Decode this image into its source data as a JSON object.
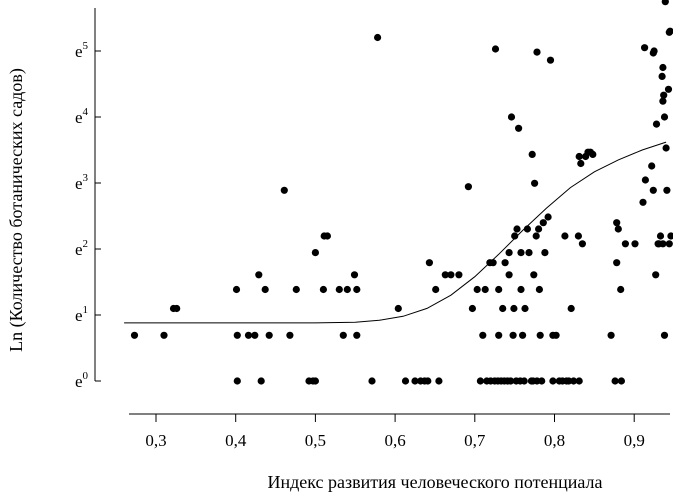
{
  "chart_data": {
    "type": "scatter",
    "xlabel": "Индекс развития человеческого потенциала",
    "ylabel": "Ln (Количество ботанических садов)",
    "xlim": [
      0.26,
      0.95
    ],
    "ylim": [
      -0.3,
      5.7
    ],
    "grid": false,
    "legend": "none",
    "x_ticks": [
      {
        "value": 0.3,
        "label": "0,3"
      },
      {
        "value": 0.4,
        "label": "0,4"
      },
      {
        "value": 0.5,
        "label": "0,5"
      },
      {
        "value": 0.6,
        "label": "0,6"
      },
      {
        "value": 0.7,
        "label": "0,7"
      },
      {
        "value": 0.8,
        "label": "0,8"
      },
      {
        "value": 0.9,
        "label": "0,9"
      }
    ],
    "y_ticks": [
      {
        "value": 0,
        "base": "e",
        "exp": "0"
      },
      {
        "value": 1,
        "base": "e",
        "exp": "1"
      },
      {
        "value": 2,
        "base": "e",
        "exp": "2"
      },
      {
        "value": 3,
        "base": "e",
        "exp": "3"
      },
      {
        "value": 4,
        "base": "e",
        "exp": "4"
      },
      {
        "value": 5,
        "base": "e",
        "exp": "5"
      }
    ],
    "series": [
      {
        "kind": "points",
        "color": "#000000",
        "points": [
          [
            0.273,
            0.693
          ],
          [
            0.31,
            0.693
          ],
          [
            0.322,
            1.099
          ],
          [
            0.326,
            1.099
          ],
          [
            0.401,
            1.386
          ],
          [
            0.402,
            0.693
          ],
          [
            0.402,
            0
          ],
          [
            0.416,
            0.693
          ],
          [
            0.424,
            0.693
          ],
          [
            0.429,
            1.609
          ],
          [
            0.432,
            0
          ],
          [
            0.437,
            1.386
          ],
          [
            0.442,
            0.693
          ],
          [
            0.461,
            2.89
          ],
          [
            0.468,
            0.693
          ],
          [
            0.476,
            1.386
          ],
          [
            0.492,
            0
          ],
          [
            0.497,
            0
          ],
          [
            0.5,
            0
          ],
          [
            0.5,
            1.946
          ],
          [
            0.51,
            1.386
          ],
          [
            0.511,
            2.197
          ],
          [
            0.515,
            2.197
          ],
          [
            0.53,
            1.386
          ],
          [
            0.535,
            0.693
          ],
          [
            0.54,
            1.386
          ],
          [
            0.549,
            1.609
          ],
          [
            0.552,
            0.693
          ],
          [
            0.552,
            1.386
          ],
          [
            0.571,
            0
          ],
          [
            0.578,
            5.204
          ],
          [
            0.604,
            1.099
          ],
          [
            0.613,
            0
          ],
          [
            0.625,
            0
          ],
          [
            0.632,
            0
          ],
          [
            0.637,
            0
          ],
          [
            0.641,
            0
          ],
          [
            0.643,
            1.792
          ],
          [
            0.651,
            1.386
          ],
          [
            0.655,
            0
          ],
          [
            0.663,
            1.609
          ],
          [
            0.67,
            1.609
          ],
          [
            0.68,
            1.609
          ],
          [
            0.692,
            2.944
          ],
          [
            0.697,
            1.099
          ],
          [
            0.703,
            1.386
          ],
          [
            0.707,
            0
          ],
          [
            0.71,
            0.693
          ],
          [
            0.713,
            1.386
          ],
          [
            0.715,
            0
          ],
          [
            0.719,
            1.792
          ],
          [
            0.72,
            0
          ],
          [
            0.723,
            1.792
          ],
          [
            0.725,
            0
          ],
          [
            0.726,
            5.03
          ],
          [
            0.729,
            0
          ],
          [
            0.73,
            0.693
          ],
          [
            0.73,
            1.386
          ],
          [
            0.733,
            0
          ],
          [
            0.735,
            1.099
          ],
          [
            0.737,
            0
          ],
          [
            0.738,
            1.792
          ],
          [
            0.741,
            0
          ],
          [
            0.743,
            1.609
          ],
          [
            0.743,
            1.946
          ],
          [
            0.745,
            0
          ],
          [
            0.746,
            4.0
          ],
          [
            0.748,
            0.693
          ],
          [
            0.749,
            1.099
          ],
          [
            0.75,
            2.197
          ],
          [
            0.752,
            0
          ],
          [
            0.753,
            2.303
          ],
          [
            0.755,
            3.829
          ],
          [
            0.757,
            0
          ],
          [
            0.758,
            1.386
          ],
          [
            0.758,
            1.946
          ],
          [
            0.76,
            0.693
          ],
          [
            0.762,
            0
          ],
          [
            0.763,
            1.099
          ],
          [
            0.766,
            2.303
          ],
          [
            0.768,
            1.946
          ],
          [
            0.771,
            0
          ],
          [
            0.772,
            3.434
          ],
          [
            0.773,
            0
          ],
          [
            0.774,
            1.609
          ],
          [
            0.775,
            2.996
          ],
          [
            0.777,
            2.197
          ],
          [
            0.778,
            0
          ],
          [
            0.778,
            4.984
          ],
          [
            0.78,
            2.303
          ],
          [
            0.781,
            1.386
          ],
          [
            0.782,
            0.693
          ],
          [
            0.784,
            0
          ],
          [
            0.786,
            2.398
          ],
          [
            0.788,
            1.946
          ],
          [
            0.792,
            2.485
          ],
          [
            0.795,
            4.86
          ],
          [
            0.798,
            0.693
          ],
          [
            0.798,
            0
          ],
          [
            0.802,
            0.693
          ],
          [
            0.806,
            0
          ],
          [
            0.81,
            0
          ],
          [
            0.813,
            2.197
          ],
          [
            0.815,
            0
          ],
          [
            0.818,
            0
          ],
          [
            0.821,
            1.099
          ],
          [
            0.824,
            0
          ],
          [
            0.83,
            2.197
          ],
          [
            0.831,
            3.401
          ],
          [
            0.831,
            0
          ],
          [
            0.833,
            3.296
          ],
          [
            0.835,
            2.079
          ],
          [
            0.839,
            3.401
          ],
          [
            0.842,
            3.466
          ],
          [
            0.845,
            3.466
          ],
          [
            0.848,
            3.434
          ],
          [
            0.871,
            0.693
          ],
          [
            0.876,
            0
          ],
          [
            0.878,
            1.792
          ],
          [
            0.878,
            2.398
          ],
          [
            0.88,
            2.303
          ],
          [
            0.883,
            1.386
          ],
          [
            0.884,
            0
          ],
          [
            0.889,
            2.079
          ],
          [
            0.901,
            2.079
          ],
          [
            0.911,
            2.708
          ],
          [
            0.913,
            5.05
          ],
          [
            0.914,
            3.045
          ],
          [
            0.922,
            3.258
          ],
          [
            0.924,
            2.89
          ],
          [
            0.924,
            4.97
          ],
          [
            0.925,
            5.0
          ],
          [
            0.927,
            1.609
          ],
          [
            0.928,
            3.892
          ],
          [
            0.93,
            2.079
          ],
          [
            0.931,
            2.079
          ],
          [
            0.933,
            2.197
          ],
          [
            0.935,
            4.615
          ],
          [
            0.936,
            2.079
          ],
          [
            0.936,
            4.75
          ],
          [
            0.936,
            4.24
          ],
          [
            0.937,
            4.33
          ],
          [
            0.938,
            0.693
          ],
          [
            0.938,
            4.0
          ],
          [
            0.939,
            5.747
          ],
          [
            0.94,
            3.53
          ],
          [
            0.941,
            2.89
          ],
          [
            0.943,
            4.42
          ],
          [
            0.944,
            2.079
          ],
          [
            0.944,
            5.284
          ],
          [
            0.945,
            5.3
          ],
          [
            0.946,
            2.197
          ]
        ]
      },
      {
        "kind": "fit",
        "color": "#000000",
        "points": [
          [
            0.26,
            0.88
          ],
          [
            0.3,
            0.88
          ],
          [
            0.35,
            0.88
          ],
          [
            0.4,
            0.88
          ],
          [
            0.45,
            0.88
          ],
          [
            0.5,
            0.88
          ],
          [
            0.55,
            0.89
          ],
          [
            0.58,
            0.92
          ],
          [
            0.61,
            0.98
          ],
          [
            0.64,
            1.1
          ],
          [
            0.67,
            1.3
          ],
          [
            0.7,
            1.58
          ],
          [
            0.73,
            1.92
          ],
          [
            0.76,
            2.28
          ],
          [
            0.79,
            2.62
          ],
          [
            0.82,
            2.93
          ],
          [
            0.85,
            3.17
          ],
          [
            0.88,
            3.35
          ],
          [
            0.91,
            3.5
          ],
          [
            0.94,
            3.62
          ]
        ]
      }
    ]
  }
}
